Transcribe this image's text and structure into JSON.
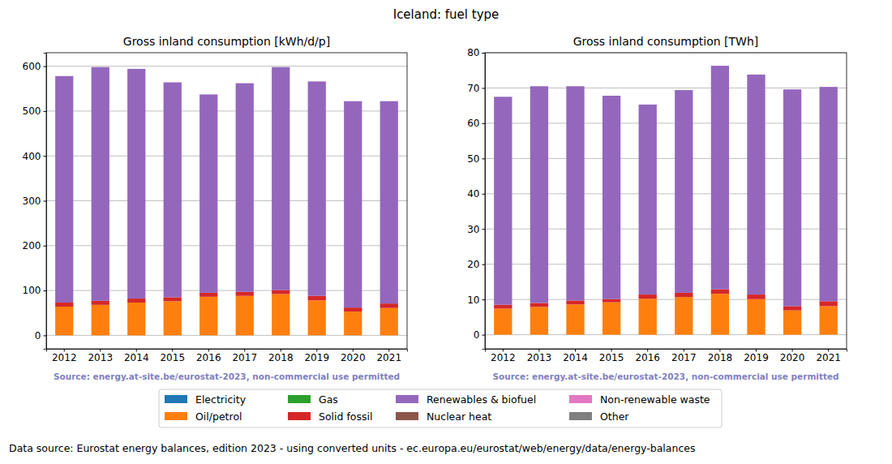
{
  "title": "Iceland: fuel type",
  "data_source": "Data source: Eurostat energy balances, edition 2023 - using converted units - ec.europa.eu/eurostat/web/energy/data/energy-balances",
  "chart_data": [
    {
      "type": "bar",
      "stacked": true,
      "grid": true,
      "legend": "bottom",
      "title": "Gross inland consumption [kWh/d/p]",
      "source": "Source: energy.at-site.be/eurostat-2023, non-commercial use permitted",
      "categories": [
        "2012",
        "2013",
        "2014",
        "2015",
        "2016",
        "2017",
        "2018",
        "2019",
        "2020",
        "2021"
      ],
      "ylim": [
        -30,
        630
      ],
      "yticks": [
        0,
        100,
        200,
        300,
        400,
        500,
        600
      ],
      "series": [
        {
          "name": "Electricity",
          "color": "#1f77b4",
          "values": [
            0,
            0,
            0,
            0,
            0,
            0,
            0,
            0,
            0,
            0
          ]
        },
        {
          "name": "Oil/petrol",
          "color": "#ff7f0e",
          "values": [
            64,
            68,
            73,
            76,
            86,
            88,
            92,
            78,
            53,
            61
          ]
        },
        {
          "name": "Gas",
          "color": "#2ca02c",
          "values": [
            0,
            0,
            0,
            0,
            0,
            0,
            0,
            0,
            0,
            0
          ]
        },
        {
          "name": "Solid fossil",
          "color": "#d62728",
          "values": [
            9,
            9,
            9,
            9,
            9,
            9,
            9,
            10,
            9,
            10
          ]
        },
        {
          "name": "Renewables & biofuel",
          "color": "#9467bd",
          "values": [
            505,
            521,
            512,
            479,
            442,
            465,
            497,
            478,
            460,
            451
          ]
        },
        {
          "name": "Nuclear heat",
          "color": "#8c564b",
          "values": [
            0,
            0,
            0,
            0,
            0,
            0,
            0,
            0,
            0,
            0
          ]
        },
        {
          "name": "Non-renewable waste",
          "color": "#e377c2",
          "values": [
            0,
            0,
            0,
            0,
            0,
            0,
            0,
            0,
            0,
            0
          ]
        },
        {
          "name": "Other",
          "color": "#7f7f7f",
          "values": [
            0,
            0,
            0,
            0,
            0,
            0,
            0,
            0,
            0,
            0
          ]
        }
      ]
    },
    {
      "type": "bar",
      "stacked": true,
      "grid": true,
      "title": "Gross inland consumption [TWh]",
      "source": "Source: energy.at-site.be/eurostat-2023, non-commercial use permitted",
      "categories": [
        "2012",
        "2013",
        "2014",
        "2015",
        "2016",
        "2017",
        "2018",
        "2019",
        "2020",
        "2021"
      ],
      "ylim": [
        -4,
        80
      ],
      "yticks": [
        0,
        10,
        20,
        30,
        40,
        50,
        60,
        70,
        80
      ],
      "series": [
        {
          "name": "Electricity",
          "color": "#1f77b4",
          "values": [
            0,
            0,
            0,
            0,
            0,
            0,
            0,
            0,
            0,
            0
          ]
        },
        {
          "name": "Oil/petrol",
          "color": "#ff7f0e",
          "values": [
            7.4,
            7.9,
            8.6,
            9.2,
            10.2,
            10.7,
            11.6,
            10.1,
            6.9,
            8.1
          ]
        },
        {
          "name": "Gas",
          "color": "#2ca02c",
          "values": [
            0,
            0,
            0,
            0,
            0,
            0,
            0,
            0,
            0,
            0
          ]
        },
        {
          "name": "Solid fossil",
          "color": "#d62728",
          "values": [
            1.1,
            1.1,
            1.1,
            0.9,
            1.2,
            1.2,
            1.3,
            1.3,
            1.2,
            1.4
          ]
        },
        {
          "name": "Renewables & biofuel",
          "color": "#9467bd",
          "values": [
            59.0,
            61.5,
            60.8,
            57.7,
            53.9,
            57.5,
            63.4,
            62.4,
            61.5,
            60.8
          ]
        },
        {
          "name": "Nuclear heat",
          "color": "#8c564b",
          "values": [
            0,
            0,
            0,
            0,
            0,
            0,
            0,
            0,
            0,
            0
          ]
        },
        {
          "name": "Non-renewable waste",
          "color": "#e377c2",
          "values": [
            0,
            0,
            0,
            0,
            0,
            0,
            0,
            0,
            0,
            0
          ]
        },
        {
          "name": "Other",
          "color": "#7f7f7f",
          "values": [
            0,
            0,
            0,
            0,
            0,
            0,
            0,
            0,
            0,
            0
          ]
        }
      ]
    }
  ]
}
